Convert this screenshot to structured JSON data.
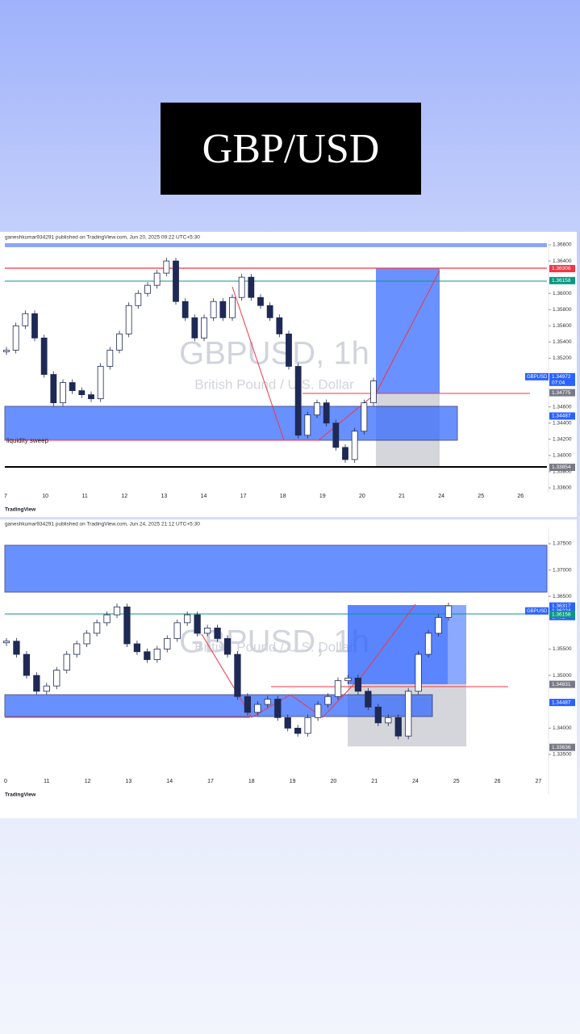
{
  "header": {
    "title": "GBP/USD"
  },
  "charts": [
    {
      "type": "candlestick",
      "attribution": "ganeshkumar934291 published on TradingView.com, Jun 20, 2025 09:22 UTC+5:30",
      "watermark_symbol": "GBPUSD, 1h",
      "watermark_name": "British Pound / U.S. Dollar",
      "brand": "TradingView",
      "annotation": "liquidity sweep",
      "xticks": [
        "7",
        "10",
        "11",
        "12",
        "13",
        "14",
        "17",
        "18",
        "19",
        "20",
        "21",
        "24",
        "25",
        "26"
      ],
      "ylim": [
        1.3358,
        1.3664
      ],
      "yticks": [
        {
          "value": 1.366,
          "label": "1.36600"
        },
        {
          "value": 1.364,
          "label": "1.36400"
        },
        {
          "value": 1.36,
          "label": "1.36000"
        },
        {
          "value": 1.358,
          "label": "1.35800"
        },
        {
          "value": 1.356,
          "label": "1.35600"
        },
        {
          "value": 1.354,
          "label": "1.35400"
        },
        {
          "value": 1.352,
          "label": "1.35200"
        },
        {
          "value": 1.346,
          "label": "1.34600"
        },
        {
          "value": 1.344,
          "label": "1.34400"
        },
        {
          "value": 1.342,
          "label": "1.34200"
        },
        {
          "value": 1.34,
          "label": "1.34000"
        },
        {
          "value": 1.338,
          "label": "1.33800"
        },
        {
          "value": 1.336,
          "label": "1.33600"
        }
      ],
      "symbol_tag": "GBPUSD",
      "price_tags": [
        {
          "value": 1.36306,
          "label": "1.36306",
          "color": "#f23645"
        },
        {
          "value": 1.36158,
          "label": "1.36158",
          "color": "#089981"
        },
        {
          "value": 1.34972,
          "label": "1.34972",
          "color": "#2962ff",
          "countdown": "07:04"
        },
        {
          "value": 1.34775,
          "label": "1.34775",
          "color": "#787b86"
        },
        {
          "value": 1.34487,
          "label": "1.34487",
          "color": "#2962ff"
        },
        {
          "value": 1.33854,
          "label": "1.33854",
          "color": "#787b86"
        }
      ],
      "closes": [
        1.353,
        1.356,
        1.3575,
        1.3545,
        1.35,
        1.3465,
        1.349,
        1.348,
        1.3475,
        1.347,
        1.351,
        1.353,
        1.355,
        1.3585,
        1.36,
        1.361,
        1.3625,
        1.364,
        1.359,
        1.357,
        1.3545,
        1.357,
        1.359,
        1.357,
        1.3595,
        1.362,
        1.3595,
        1.3585,
        1.357,
        1.355,
        1.351,
        1.3425,
        1.345,
        1.3465,
        1.344,
        1.341,
        1.3395,
        1.343,
        1.3465,
        1.3492
      ]
    },
    {
      "type": "candlestick",
      "attribution": "ganeshkumar934291 published on TradingView.com, Jun 24, 2025 21:12 UTC+5:30",
      "watermark_symbol": "GBPUSD, 1h",
      "watermark_name": "British Pound / U.S. Dollar",
      "brand": "TradingView",
      "xticks": [
        "0",
        "11",
        "12",
        "13",
        "14",
        "17",
        "18",
        "19",
        "20",
        "21",
        "24",
        "25",
        "26",
        "27"
      ],
      "ylim": [
        1.3335,
        1.377
      ],
      "yticks": [
        {
          "value": 1.375,
          "label": "1.37500"
        },
        {
          "value": 1.37,
          "label": "1.37000"
        },
        {
          "value": 1.365,
          "label": "1.36500"
        },
        {
          "value": 1.355,
          "label": "1.35500"
        },
        {
          "value": 1.35,
          "label": "1.35000"
        },
        {
          "value": 1.34,
          "label": "1.34000"
        },
        {
          "value": 1.335,
          "label": "1.33500"
        }
      ],
      "symbol_tag": "GBPUSD",
      "price_tags": [
        {
          "value": 1.36317,
          "label": "1.36317",
          "color": "#2962ff"
        },
        {
          "value": 1.36224,
          "label": "1.36224",
          "color": "#2962ff",
          "countdown": "17:02"
        },
        {
          "value": 1.36158,
          "label": "1.36158",
          "color": "#089981"
        },
        {
          "value": 1.34831,
          "label": "1.34831",
          "color": "#787b86"
        },
        {
          "value": 1.34487,
          "label": "1.34487",
          "color": "#2962ff"
        },
        {
          "value": 1.33636,
          "label": "1.33636",
          "color": "#787b86"
        }
      ],
      "closes": [
        1.3565,
        1.354,
        1.35,
        1.347,
        1.348,
        1.351,
        1.354,
        1.356,
        1.358,
        1.36,
        1.3615,
        1.363,
        1.356,
        1.3545,
        1.353,
        1.355,
        1.357,
        1.36,
        1.3615,
        1.358,
        1.359,
        1.357,
        1.354,
        1.346,
        1.343,
        1.3445,
        1.3455,
        1.342,
        1.34,
        1.339,
        1.342,
        1.3445,
        1.346,
        1.349,
        1.3495,
        1.347,
        1.344,
        1.341,
        1.342,
        1.3385,
        1.347,
        1.354,
        1.358,
        1.361,
        1.3632
      ]
    }
  ]
}
